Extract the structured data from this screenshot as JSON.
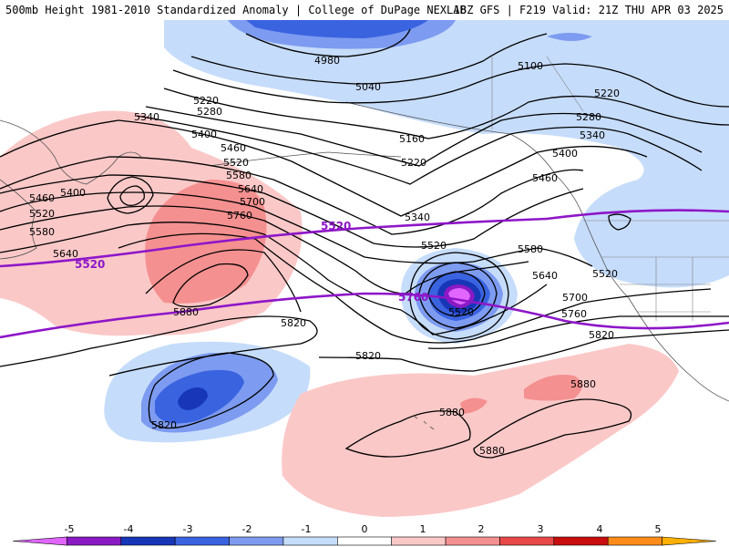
{
  "header": {
    "title_left": "500mb Height 1981-2010 Standardized Anomaly | College of DuPage NEXLAB",
    "title_right": "18Z GFS | F219 Valid: 21Z THU APR 03 2025"
  },
  "contour_labels": [
    "4980",
    "5040",
    "5100",
    "5160",
    "5220",
    "5220",
    "5220",
    "5280",
    "5280",
    "5340",
    "5340",
    "5340",
    "5400",
    "5400",
    "5400",
    "5460",
    "5460",
    "5460",
    "5520",
    "5520",
    "5520",
    "5520",
    "5580",
    "5580",
    "5580",
    "5640",
    "5640",
    "5640",
    "5700",
    "5700",
    "5760",
    "5760",
    "5820",
    "5820",
    "5820",
    "5820",
    "5880",
    "5880",
    "5880",
    "5880"
  ],
  "purple_labels": [
    "5520",
    "5520",
    "5760"
  ],
  "colorbar": {
    "ticks": [
      "-5",
      "-4",
      "-3",
      "-2",
      "-1",
      "0",
      "1",
      "2",
      "3",
      "4",
      "5"
    ],
    "colors": [
      "#e066ff",
      "#8a1ac4",
      "#1736b8",
      "#3a63e0",
      "#7d9bf0",
      "#c6dcfb",
      "#ffffff",
      "#fbc8c8",
      "#f59090",
      "#e84848",
      "#c80e0e",
      "#ff8c1a",
      "#ffb000"
    ]
  },
  "anomaly_colors": {
    "neg1": "#c6dcfb",
    "neg2": "#7d9bf0",
    "neg3": "#3a63e0",
    "neg4": "#1736b8",
    "neg5": "#8a1ac4",
    "neg6": "#e066ff",
    "pos1": "#fbc8c8",
    "pos2": "#f59090",
    "pos3": "#e84848"
  },
  "line_colors": {
    "height": "#000000",
    "ref": "#8e16c8",
    "coast": "#555555"
  }
}
